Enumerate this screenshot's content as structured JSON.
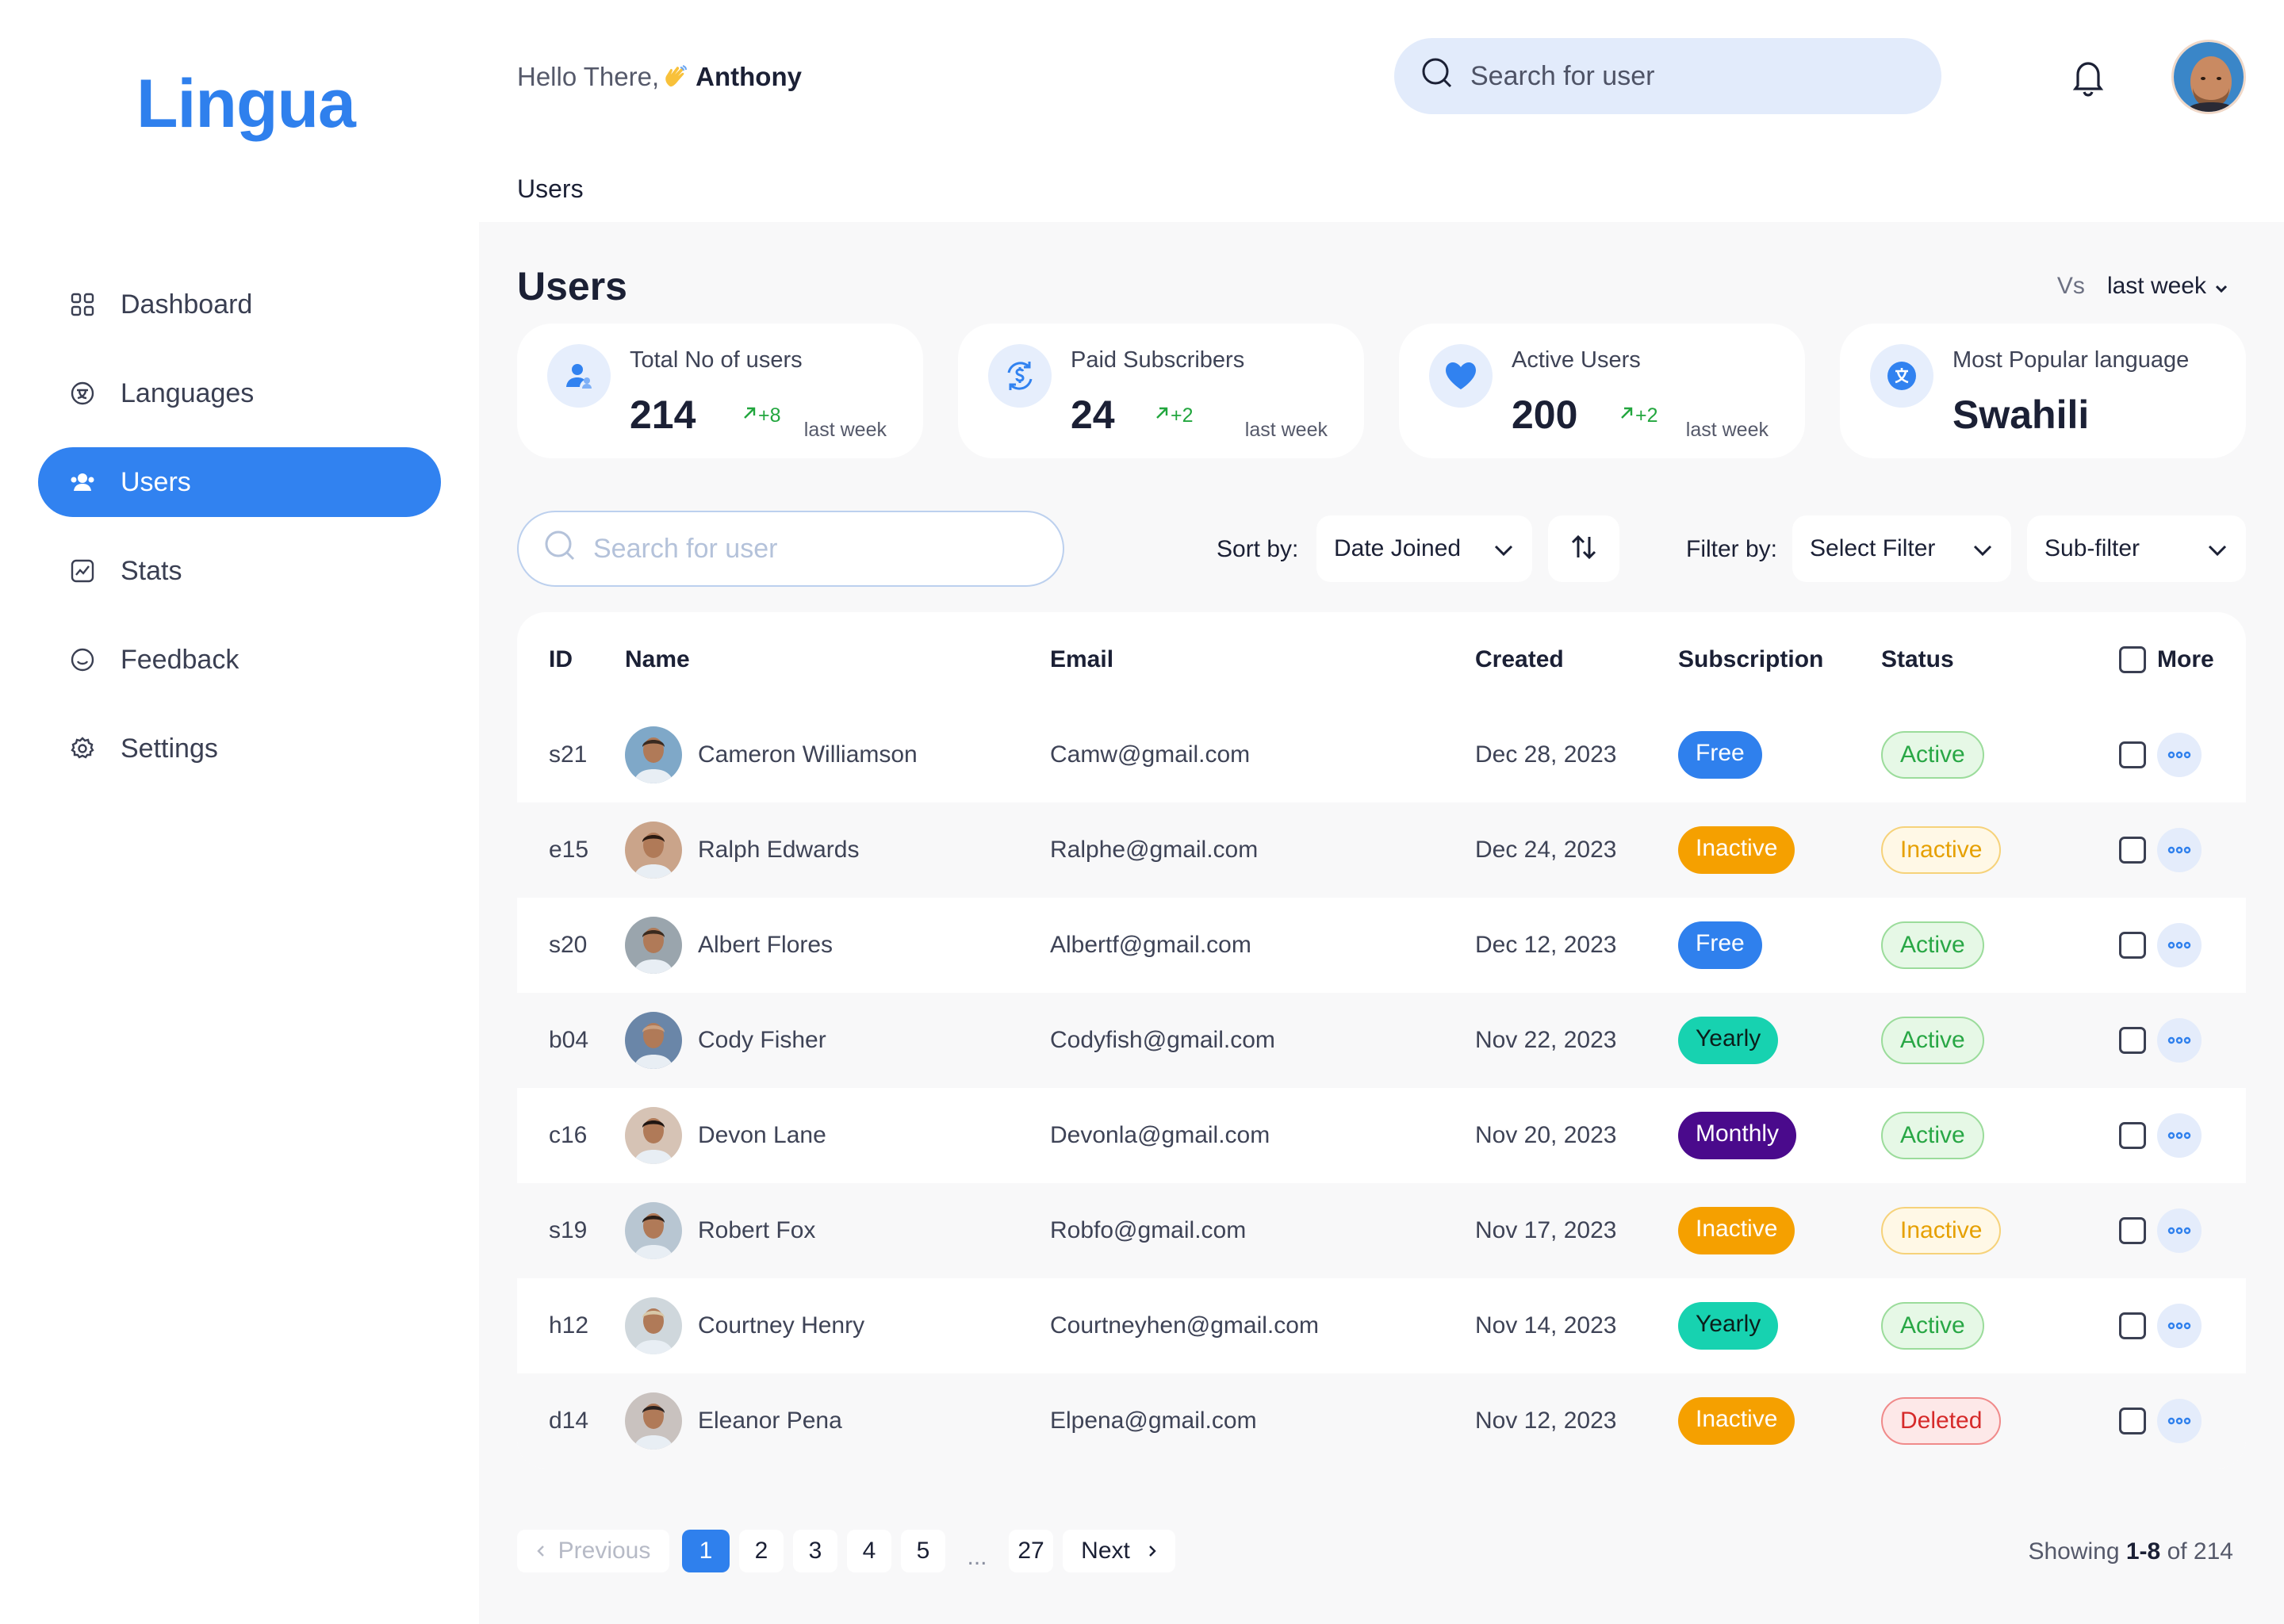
{
  "app": {
    "logo": "Lingua"
  },
  "sidebar": {
    "items": [
      {
        "label": "Dashboard",
        "icon": "grid-icon",
        "active": false
      },
      {
        "label": "Languages",
        "icon": "language-icon",
        "active": false
      },
      {
        "label": "Users",
        "icon": "users-icon",
        "active": true
      },
      {
        "label": "Stats",
        "icon": "chart-icon",
        "active": false
      },
      {
        "label": "Feedback",
        "icon": "smile-icon",
        "active": false
      },
      {
        "label": "Settings",
        "icon": "gear-icon",
        "active": false
      }
    ]
  },
  "header": {
    "greeting": "Hello There,",
    "user_name": "Anthony",
    "search_placeholder": "Search for user"
  },
  "breadcrumb": "Users",
  "main": {
    "title": "Users",
    "vs_label": "Vs",
    "vs_value": "last week"
  },
  "cards": [
    {
      "label": "Total No of users",
      "value": "214",
      "delta": "+8",
      "period": "last week",
      "icon": "users-icon"
    },
    {
      "label": "Paid Subscribers",
      "value": "24",
      "delta": "+2",
      "period": "last week",
      "icon": "dollar-cycle-icon"
    },
    {
      "label": "Active Users",
      "value": "200",
      "delta": "+2",
      "period": "last week",
      "icon": "heart-icon"
    },
    {
      "label": "Most Popular language",
      "value": "Swahili",
      "icon": "translate-icon"
    }
  ],
  "filters": {
    "search_placeholder": "Search for user",
    "sort_label": "Sort by:",
    "sort_value": "Date Joined",
    "filter_label": "Filter by:",
    "filter_value": "Select Filter",
    "subfilter_value": "Sub-filter"
  },
  "table": {
    "headers": {
      "id": "ID",
      "name": "Name",
      "email": "Email",
      "created": "Created",
      "subscription": "Subscription",
      "status": "Status",
      "more": "More"
    },
    "rows": [
      {
        "id": "s21",
        "name": "Cameron Williamson",
        "email": "Camw@gmail.com",
        "created": "Dec 28, 2023",
        "subscription": "Free",
        "status": "Active"
      },
      {
        "id": "e15",
        "name": "Ralph Edwards",
        "email": "Ralphe@gmail.com",
        "created": "Dec 24, 2023",
        "subscription": "Inactive",
        "status": "Inactive"
      },
      {
        "id": "s20",
        "name": "Albert Flores",
        "email": "Albertf@gmail.com",
        "created": "Dec 12, 2023",
        "subscription": "Free",
        "status": "Active"
      },
      {
        "id": "b04",
        "name": "Cody Fisher",
        "email": "Codyfish@gmail.com",
        "created": "Nov 22, 2023",
        "subscription": "Yearly",
        "status": "Active"
      },
      {
        "id": "c16",
        "name": "Devon Lane",
        "email": "Devonla@gmail.com",
        "created": "Nov 20, 2023",
        "subscription": "Monthly",
        "status": "Active"
      },
      {
        "id": "s19",
        "name": "Robert Fox",
        "email": "Robfo@gmail.com",
        "created": "Nov 17, 2023",
        "subscription": "Inactive",
        "status": "Inactive"
      },
      {
        "id": "h12",
        "name": "Courtney Henry",
        "email": "Courtneyhen@gmail.com",
        "created": "Nov 14, 2023",
        "subscription": "Yearly",
        "status": "Active"
      },
      {
        "id": "d14",
        "name": "Eleanor Pena",
        "email": "Elpena@gmail.com",
        "created": "Nov 12, 2023",
        "subscription": "Inactive",
        "status": "Deleted"
      }
    ]
  },
  "pagination": {
    "previous": "Previous",
    "pages": [
      "1",
      "2",
      "3",
      "4",
      "5"
    ],
    "dots": "...",
    "last": "27",
    "next": "Next",
    "current": "1",
    "showing_prefix": "Showing",
    "showing_range": "1-8",
    "showing_suffix": "of 214"
  },
  "colors": {
    "accent": "#2f80ed",
    "active_nav": "#3182f0",
    "free": "#2f80ed",
    "inactive": "#f5a000",
    "yearly": "#17d2b0",
    "monthly": "#4a0a8c",
    "active_status": "#28a745",
    "deleted": "#d62a2a"
  }
}
